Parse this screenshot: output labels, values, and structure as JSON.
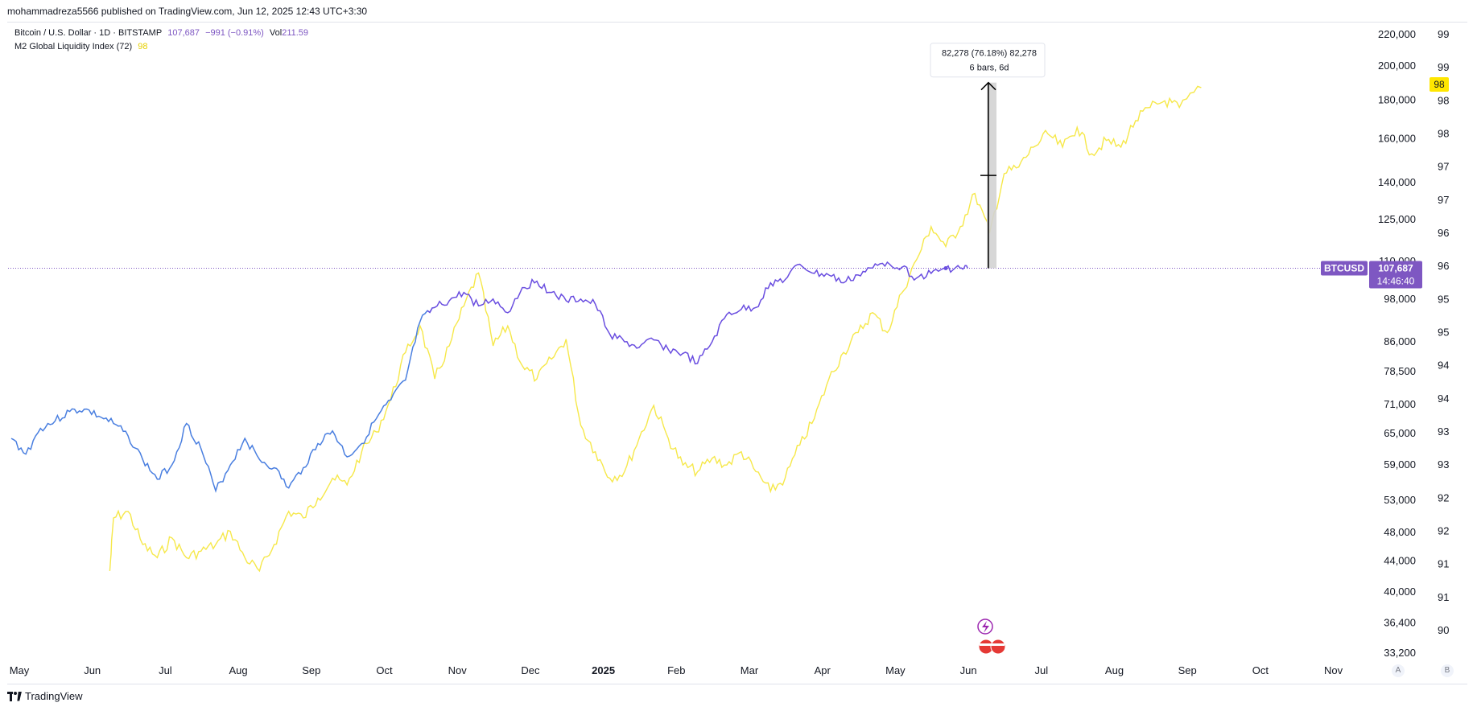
{
  "header": {
    "publisher": "mohammadreza5566 published on TradingView.com, Jun 12, 2025 12:43 UTC+3:30"
  },
  "legend": {
    "symbol": "Bitcoin / U.S. Dollar · 1D · BITSTAMP",
    "price": "107,687",
    "change": "−991 (−0.91%)",
    "vol_label": "Vol",
    "vol_value": "211.59",
    "indicator": "M2 Global Liquidity Index (72)",
    "indicator_value": "98"
  },
  "measure": {
    "line1": "82,278 (76.18%) 82,278",
    "line2": "6 bars, 6d"
  },
  "price_label": {
    "ticker": "BTCUSD",
    "price": "107,687",
    "countdown": "14:46:40",
    "m2_badge": "98"
  },
  "footer": {
    "brand": "TradingView"
  },
  "axis_buttons": {
    "a": "A",
    "b": "B"
  },
  "colors": {
    "btc_blue": "#4a7fe0",
    "btc_purple": "#6a4ee0",
    "m2": "#f6e84a",
    "price_line": "#7e57c2"
  },
  "chart_data": {
    "type": "line",
    "title": "Bitcoin / U.S. Dollar · 1D · BITSTAMP",
    "x": [
      "May",
      "Jun",
      "Jul",
      "Aug",
      "Sep",
      "Oct",
      "Nov",
      "Dec",
      "2025",
      "Feb",
      "Mar",
      "Apr",
      "May",
      "Jun",
      "Jul",
      "Aug",
      "Sep",
      "Oct",
      "Nov"
    ],
    "y_ticks_btc": [
      "220,000",
      "200,000",
      "180,000",
      "160,000",
      "140,000",
      "125,000",
      "110,000",
      "98,000",
      "86,000",
      "78,500",
      "71,000",
      "65,000",
      "59,000",
      "53,000",
      "48,000",
      "44,000",
      "40,000",
      "36,400",
      "33,200"
    ],
    "y_ticks_m2": [
      "99",
      "99",
      "98",
      "98",
      "97",
      "97",
      "96",
      "96",
      "95",
      "95",
      "94",
      "94",
      "93",
      "93",
      "92",
      "92",
      "91",
      "91",
      "90"
    ],
    "ylim_btc": [
      33200,
      220000
    ],
    "ylim_m2": [
      90,
      99
    ],
    "series": [
      {
        "name": "BTCUSD",
        "axis": "left-price",
        "x": [
          0.0,
          0.2,
          0.4,
          0.6,
          0.8,
          1.0,
          1.2,
          1.4,
          1.6,
          1.8,
          2.0,
          2.2,
          2.4,
          2.6,
          2.8,
          3.0,
          3.2,
          3.4,
          3.6,
          3.8,
          4.0,
          4.2,
          4.4,
          4.6,
          4.8,
          5.0,
          5.2,
          5.4,
          5.6,
          5.8,
          6.0,
          6.2,
          6.4,
          6.6,
          6.8,
          7.0,
          7.2,
          7.4,
          7.6,
          7.8,
          8.0,
          8.2,
          8.4,
          8.6,
          8.8,
          9.0,
          9.2,
          9.4,
          9.6,
          9.8,
          10.0,
          10.2,
          10.4,
          10.6,
          10.8,
          11.0,
          11.2,
          11.4,
          11.6,
          11.8,
          12.0,
          12.2,
          12.4,
          12.6,
          12.8,
          13.0,
          13.1
        ],
        "values": [
          64000,
          61000,
          66000,
          67500,
          69500,
          70000,
          68500,
          67000,
          64500,
          60000,
          56500,
          59000,
          67000,
          62000,
          54500,
          59000,
          64000,
          60000,
          58500,
          55000,
          58500,
          63000,
          65500,
          60500,
          63000,
          68000,
          72000,
          76500,
          91500,
          95500,
          97500,
          100000,
          96000,
          98000,
          94000,
          101500,
          103500,
          100000,
          97500,
          98000,
          96500,
          88000,
          86000,
          84500,
          86500,
          84000,
          83000,
          80500,
          86000,
          93500,
          95000,
          95500,
          103000,
          104000,
          109000,
          106000,
          105500,
          103000,
          105500,
          107800,
          109700,
          108000,
          104500,
          106000,
          107687,
          107687,
          107687
        ],
        "color": "#6a4ee0"
      },
      {
        "name": "M2 Global Liquidity Index (72)",
        "axis": "right-m2",
        "x": [
          1.35,
          1.4,
          1.6,
          1.8,
          2.0,
          2.2,
          2.4,
          2.6,
          2.8,
          3.0,
          3.2,
          3.4,
          3.6,
          3.8,
          4.0,
          4.2,
          4.4,
          4.6,
          4.8,
          5.0,
          5.2,
          5.4,
          5.6,
          5.8,
          6.0,
          6.2,
          6.4,
          6.6,
          6.8,
          7.0,
          7.2,
          7.4,
          7.6,
          7.8,
          8.0,
          8.2,
          8.4,
          8.6,
          8.8,
          9.0,
          9.2,
          9.4,
          9.6,
          9.8,
          10.0,
          10.2,
          10.4,
          10.6,
          10.8,
          11.0,
          11.2,
          11.4,
          11.6,
          11.8,
          12.0,
          12.2,
          12.4,
          12.6,
          12.8,
          13.0,
          13.2,
          13.4,
          13.6,
          13.8,
          14.0,
          14.2,
          14.4,
          14.6,
          14.8,
          15.0,
          15.2,
          15.4,
          15.6,
          15.8,
          16.0,
          16.3
        ],
        "values": [
          90.9,
          91.7,
          91.8,
          91.3,
          91.1,
          91.4,
          91.1,
          91.2,
          91.3,
          91.5,
          91.1,
          90.9,
          91.3,
          91.8,
          91.7,
          92.0,
          92.3,
          92.2,
          92.7,
          93.0,
          93.5,
          94.2,
          94.6,
          93.8,
          94.3,
          94.9,
          95.4,
          94.3,
          94.6,
          94.0,
          93.8,
          94.1,
          94.4,
          93.1,
          92.7,
          92.3,
          92.4,
          92.9,
          93.4,
          92.9,
          92.5,
          92.4,
          92.6,
          92.5,
          92.7,
          92.4,
          92.1,
          92.3,
          92.8,
          93.2,
          93.8,
          94.2,
          94.5,
          94.8,
          94.5,
          95.1,
          95.6,
          96.1,
          95.8,
          96.1,
          96.6,
          96.0,
          96.9,
          97.0,
          97.3,
          97.5,
          97.3,
          97.6,
          97.2,
          97.4,
          97.3,
          97.7,
          97.9,
          98.0,
          97.9,
          98.2
        ],
        "color": "#f6e84a"
      }
    ],
    "annotations": [
      "82,278 (76.18%) 82,278",
      "6 bars, 6d",
      "BTCUSD 107,687"
    ]
  }
}
